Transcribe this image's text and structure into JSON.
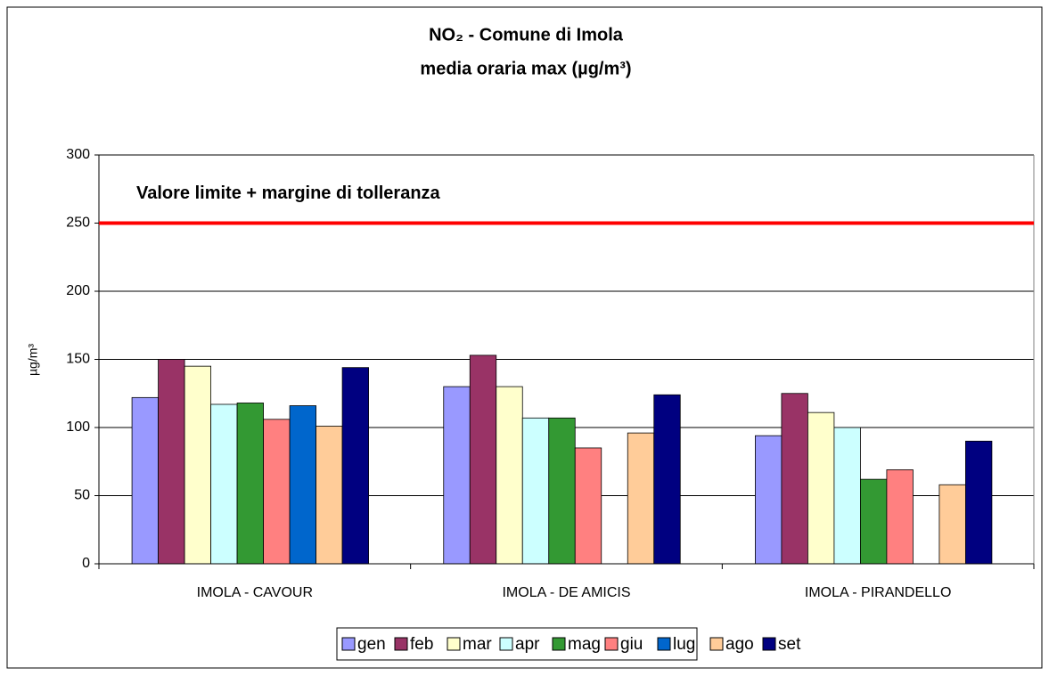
{
  "chart_data": {
    "type": "bar",
    "title": "NO₂ - Comune di Imola",
    "subtitle": "media oraria max  (µg/m³)",
    "y_label": "µg/m³",
    "categories": [
      "IMOLA - CAVOUR",
      "IMOLA - DE AMICIS",
      "IMOLA - PIRANDELLO"
    ],
    "series": [
      {
        "name": "gen",
        "color": "#9999ff",
        "values": [
          122,
          130,
          94
        ]
      },
      {
        "name": "feb",
        "color": "#993366",
        "values": [
          150,
          153,
          125
        ]
      },
      {
        "name": "mar",
        "color": "#ffffcc",
        "values": [
          145,
          130,
          111
        ]
      },
      {
        "name": "apr",
        "color": "#ccffff",
        "values": [
          117,
          107,
          100
        ]
      },
      {
        "name": "mag",
        "color": "#339933",
        "values": [
          118,
          107,
          62
        ]
      },
      {
        "name": "giu",
        "color": "#ff8080",
        "values": [
          106,
          85,
          69
        ]
      },
      {
        "name": "lug",
        "color": "#0066cc",
        "values": [
          116,
          null,
          null
        ]
      },
      {
        "name": "ago",
        "color": "#ffcc99",
        "values": [
          101,
          96,
          58
        ]
      },
      {
        "name": "set",
        "color": "#000080",
        "values": [
          144,
          124,
          90
        ]
      }
    ],
    "ylim": [
      0,
      300
    ],
    "yticks": [
      0,
      50,
      100,
      150,
      200,
      250,
      300
    ],
    "grid": true,
    "reference_line": {
      "value": 250,
      "label": "Valore limite + margine di tolleranza",
      "color": "#ff0000"
    },
    "legend": "bottom"
  }
}
